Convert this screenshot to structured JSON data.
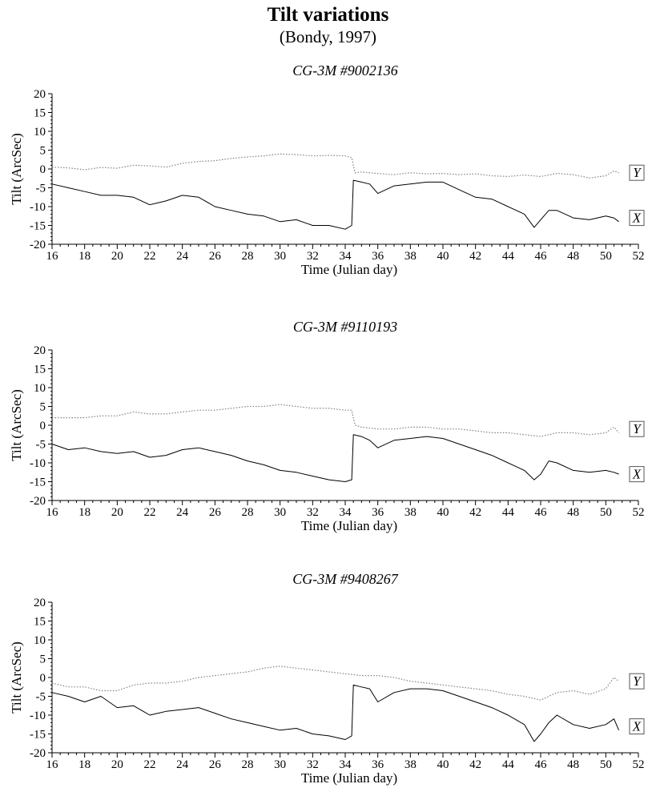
{
  "title": "Tilt variations",
  "subtitle": "(Bondy, 1997)",
  "colors": {
    "axis": "#000000",
    "series_x": "#000000",
    "series_y": "#808080"
  },
  "chart_data": [
    {
      "type": "line",
      "title": "CG-3M #9002136",
      "xlabel": "Time (Julian day)",
      "ylabel": "Tilt (ArcSec)",
      "xlim": [
        16,
        52
      ],
      "ylim": [
        -20,
        20
      ],
      "xticks": [
        16,
        18,
        20,
        22,
        24,
        26,
        28,
        30,
        32,
        34,
        36,
        38,
        40,
        42,
        44,
        46,
        48,
        50,
        52
      ],
      "yticks": [
        20,
        15,
        10,
        5,
        0,
        -5,
        -10,
        -15,
        -20
      ],
      "grid": false,
      "legend": "right, series labels at line ends",
      "series": [
        {
          "name": "Y",
          "style": "dotted",
          "x": [
            16,
            17,
            18,
            19,
            20,
            21,
            22,
            23,
            24,
            25,
            26,
            27,
            28,
            29,
            30,
            31,
            32,
            33,
            34,
            34.4,
            34.6,
            35,
            36,
            37,
            38,
            39,
            40,
            41,
            42,
            43,
            44,
            45,
            46,
            47,
            48,
            49,
            50,
            50.5,
            50.8
          ],
          "y": [
            0.5,
            0.3,
            -0.2,
            0.4,
            0.2,
            1,
            0.8,
            0.5,
            1.5,
            2,
            2.2,
            2.8,
            3.2,
            3.5,
            4,
            3.8,
            3.5,
            3.6,
            3.5,
            3,
            -1,
            -0.8,
            -1.2,
            -1.5,
            -1,
            -1.3,
            -1.2,
            -1.5,
            -1.3,
            -1.8,
            -2,
            -1.6,
            -2,
            -1.2,
            -1.5,
            -2.4,
            -1.8,
            -0.5,
            -1
          ]
        },
        {
          "name": "X",
          "style": "solid",
          "x": [
            16,
            17,
            18,
            19,
            20,
            21,
            22,
            23,
            24,
            25,
            26,
            27,
            28,
            29,
            30,
            31,
            32,
            33,
            34,
            34.4,
            34.5,
            35,
            35.5,
            36,
            37,
            38,
            39,
            40,
            41,
            42,
            43,
            44,
            45,
            45.6,
            46,
            46.5,
            47,
            48,
            49,
            50,
            50.5,
            50.8
          ],
          "y": [
            -4,
            -5,
            -6,
            -7,
            -7,
            -7.5,
            -9.5,
            -8.5,
            -7,
            -7.5,
            -10,
            -11,
            -12,
            -12.5,
            -14,
            -13.5,
            -15,
            -15,
            -16,
            -15,
            -3,
            -3.5,
            -4,
            -6.5,
            -4.5,
            -4,
            -3.5,
            -3.5,
            -5.5,
            -7.5,
            -8,
            -10,
            -12,
            -15.5,
            -13.5,
            -11,
            -11,
            -13,
            -13.5,
            -12.5,
            -13,
            -14
          ]
        }
      ]
    },
    {
      "type": "line",
      "title": "CG-3M #9110193",
      "xlabel": "Time (Julian day)",
      "ylabel": "Tilt (ArcSec)",
      "xlim": [
        16,
        52
      ],
      "ylim": [
        -20,
        20
      ],
      "xticks": [
        16,
        18,
        20,
        22,
        24,
        26,
        28,
        30,
        32,
        34,
        36,
        38,
        40,
        42,
        44,
        46,
        48,
        50,
        52
      ],
      "yticks": [
        20,
        15,
        10,
        5,
        0,
        -5,
        -10,
        -15,
        -20
      ],
      "grid": false,
      "legend": "right, series labels at line ends",
      "series": [
        {
          "name": "Y",
          "style": "dotted",
          "x": [
            16,
            17,
            18,
            19,
            20,
            21,
            22,
            23,
            24,
            25,
            26,
            27,
            28,
            29,
            30,
            31,
            32,
            33,
            34,
            34.4,
            34.6,
            35,
            36,
            37,
            38,
            39,
            40,
            41,
            42,
            43,
            44,
            45,
            46,
            47,
            48,
            49,
            50,
            50.5,
            50.8
          ],
          "y": [
            2,
            2,
            2,
            2.5,
            2.5,
            3.5,
            3,
            3,
            3.5,
            4,
            4,
            4.5,
            5,
            5,
            5.5,
            5,
            4.5,
            4.5,
            4,
            4,
            0,
            -0.5,
            -1,
            -1,
            -0.5,
            -0.5,
            -1,
            -1,
            -1.5,
            -2,
            -2,
            -2.5,
            -3,
            -2,
            -2,
            -2.5,
            -2,
            -0.5,
            -2
          ]
        },
        {
          "name": "X",
          "style": "solid",
          "x": [
            16,
            17,
            18,
            19,
            20,
            21,
            22,
            23,
            24,
            25,
            26,
            27,
            28,
            29,
            30,
            31,
            32,
            33,
            34,
            34.4,
            34.5,
            35,
            35.5,
            36,
            37,
            38,
            39,
            40,
            41,
            42,
            43,
            44,
            45,
            45.6,
            46,
            46.5,
            47,
            48,
            49,
            50,
            50.5,
            50.8
          ],
          "y": [
            -5,
            -6.5,
            -6,
            -7,
            -7.5,
            -7,
            -8.5,
            -8,
            -6.5,
            -6,
            -7,
            -8,
            -9.5,
            -10.5,
            -12,
            -12.5,
            -13.5,
            -14.5,
            -15,
            -14.5,
            -2.5,
            -3,
            -4,
            -6,
            -4,
            -3.5,
            -3,
            -3.5,
            -5,
            -6.5,
            -8,
            -10,
            -12,
            -14.5,
            -13,
            -9.5,
            -10,
            -12,
            -12.5,
            -12,
            -12.5,
            -13
          ]
        }
      ]
    },
    {
      "type": "line",
      "title": "CG-3M #9408267",
      "xlabel": "Time (Julian day)",
      "ylabel": "Tilt (ArcSec)",
      "xlim": [
        16,
        52
      ],
      "ylim": [
        -20,
        20
      ],
      "xticks": [
        16,
        18,
        20,
        22,
        24,
        26,
        28,
        30,
        32,
        34,
        36,
        38,
        40,
        42,
        44,
        46,
        48,
        50,
        52
      ],
      "yticks": [
        20,
        15,
        10,
        5,
        0,
        -5,
        -10,
        -15,
        -20
      ],
      "grid": false,
      "legend": "right, series labels at line ends",
      "series": [
        {
          "name": "Y",
          "style": "dotted",
          "x": [
            16,
            17,
            18,
            19,
            20,
            21,
            22,
            23,
            24,
            25,
            26,
            27,
            28,
            29,
            30,
            31,
            32,
            33,
            34,
            35,
            36,
            37,
            38,
            39,
            40,
            41,
            42,
            43,
            44,
            45,
            46,
            47,
            48,
            49,
            50,
            50.5,
            50.8
          ],
          "y": [
            -1.5,
            -2.5,
            -2.5,
            -3.5,
            -3.5,
            -2,
            -1.5,
            -1.5,
            -1,
            0,
            0.5,
            1,
            1.5,
            2.5,
            3,
            2.5,
            2,
            1.5,
            1,
            0.5,
            0.5,
            0,
            -1,
            -1.5,
            -2,
            -2.5,
            -3,
            -3.5,
            -4.5,
            -5,
            -6,
            -4,
            -3.5,
            -4.5,
            -3,
            0,
            -1
          ]
        },
        {
          "name": "X",
          "style": "solid",
          "x": [
            16,
            17,
            18,
            19,
            20,
            21,
            22,
            23,
            24,
            25,
            26,
            27,
            28,
            29,
            30,
            31,
            32,
            33,
            34,
            34.4,
            34.5,
            35,
            35.5,
            36,
            37,
            38,
            39,
            40,
            41,
            42,
            43,
            44,
            45,
            45.6,
            46,
            46.5,
            47,
            48,
            49,
            50,
            50.5,
            50.8
          ],
          "y": [
            -4,
            -5,
            -6.5,
            -5,
            -8,
            -7.5,
            -10,
            -9,
            -8.5,
            -8,
            -9.5,
            -11,
            -12,
            -13,
            -14,
            -13.5,
            -15,
            -15.5,
            -16.5,
            -15.5,
            -2,
            -2.5,
            -3,
            -6.5,
            -4,
            -3,
            -3,
            -3.5,
            -5,
            -6.5,
            -8,
            -10,
            -12.5,
            -17,
            -15,
            -12,
            -10,
            -12.5,
            -13.5,
            -12.5,
            -11,
            -14
          ]
        }
      ]
    }
  ]
}
